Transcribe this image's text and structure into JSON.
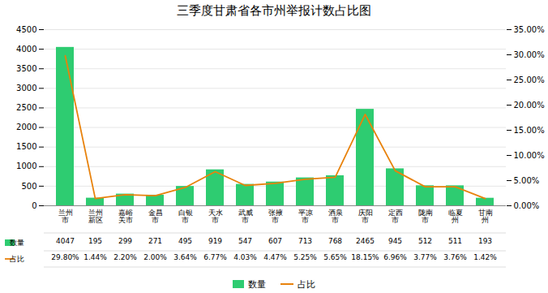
{
  "chart_data": {
    "type": "bar",
    "title": "三季度甘肃省各市州举报计数占比图",
    "categories": [
      "兰州\n市",
      "兰州\n新区",
      "嘉峪\n关市",
      "金昌\n市",
      "白银\n市",
      "天水\n市",
      "武威\n市",
      "张掖\n市",
      "平凉\n市",
      "酒泉\n市",
      "庆阳\n市",
      "定西\n市",
      "陇南\n市",
      "临夏\n州",
      "甘南\n州"
    ],
    "series": [
      {
        "name": "数量",
        "type": "bar",
        "color": "#2ECC71",
        "values": [
          4047,
          195,
          299,
          271,
          495,
          919,
          547,
          607,
          713,
          768,
          2465,
          945,
          512,
          511,
          193
        ]
      },
      {
        "name": "占比",
        "type": "line",
        "color": "#E8820C",
        "axis": "y2",
        "values": [
          29.8,
          1.44,
          2.2,
          2.0,
          3.64,
          6.77,
          4.03,
          4.47,
          5.25,
          5.65,
          18.15,
          6.96,
          3.77,
          3.76,
          1.42
        ],
        "value_labels": [
          "29.80%",
          "1.44%",
          "2.20%",
          "2.00%",
          "3.64%",
          "6.77%",
          "4.03%",
          "4.47%",
          "5.25%",
          "5.65%",
          "18.15%",
          "6.96%",
          "3.77%",
          "3.76%",
          "1.42%"
        ]
      }
    ],
    "ylim": [
      0,
      4500
    ],
    "yticks": [
      0,
      500,
      1000,
      1500,
      2000,
      2500,
      3000,
      3500,
      4000,
      4500
    ],
    "y2lim": [
      0,
      35.0
    ],
    "y2ticks": [
      {
        "value": 0.0,
        "label": "0.00%"
      },
      {
        "value": 5.0,
        "label": "5.00%"
      },
      {
        "value": 10.0,
        "label": "10.00%"
      },
      {
        "value": 15.0,
        "label": "15.00%"
      },
      {
        "value": 20.0,
        "label": "20.00%"
      },
      {
        "value": 25.0,
        "label": "25.00%"
      },
      {
        "value": 30.0,
        "label": "30.00%"
      },
      {
        "value": 35.0,
        "label": "35.00%"
      }
    ],
    "grid": true,
    "data_labels": true,
    "legend": "bottom"
  }
}
